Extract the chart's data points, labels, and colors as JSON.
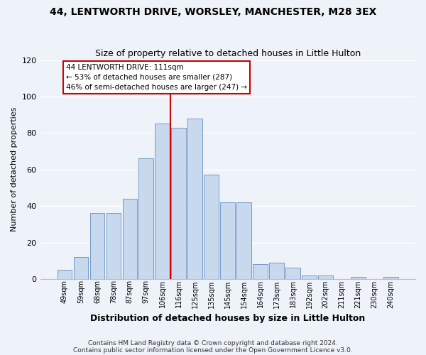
{
  "title": "44, LENTWORTH DRIVE, WORSLEY, MANCHESTER, M28 3EX",
  "subtitle": "Size of property relative to detached houses in Little Hulton",
  "xlabel": "Distribution of detached houses by size in Little Hulton",
  "ylabel": "Number of detached properties",
  "bar_labels": [
    "49sqm",
    "59sqm",
    "68sqm",
    "78sqm",
    "87sqm",
    "97sqm",
    "106sqm",
    "116sqm",
    "125sqm",
    "135sqm",
    "145sqm",
    "154sqm",
    "164sqm",
    "173sqm",
    "183sqm",
    "192sqm",
    "202sqm",
    "211sqm",
    "221sqm",
    "230sqm",
    "240sqm"
  ],
  "bar_values": [
    5,
    12,
    36,
    36,
    44,
    66,
    85,
    83,
    88,
    57,
    42,
    42,
    8,
    9,
    6,
    2,
    2,
    0,
    1,
    0,
    1
  ],
  "bar_color": "#c9d9ed",
  "bar_edge_color": "#7399c6",
  "vline_x_idx": 7,
  "vline_color": "#cc0000",
  "annotation_line1": "44 LENTWORTH DRIVE: 111sqm",
  "annotation_line2": "← 53% of detached houses are smaller (287)",
  "annotation_line3": "46% of semi-detached houses are larger (247) →",
  "annotation_box_color": "#ffffff",
  "annotation_box_edge": "#cc0000",
  "ylim": [
    0,
    120
  ],
  "yticks": [
    0,
    20,
    40,
    60,
    80,
    100,
    120
  ],
  "footer1": "Contains HM Land Registry data © Crown copyright and database right 2024.",
  "footer2": "Contains public sector information licensed under the Open Government Licence v3.0.",
  "background_color": "#eef2f9",
  "grid_color": "#ffffff"
}
